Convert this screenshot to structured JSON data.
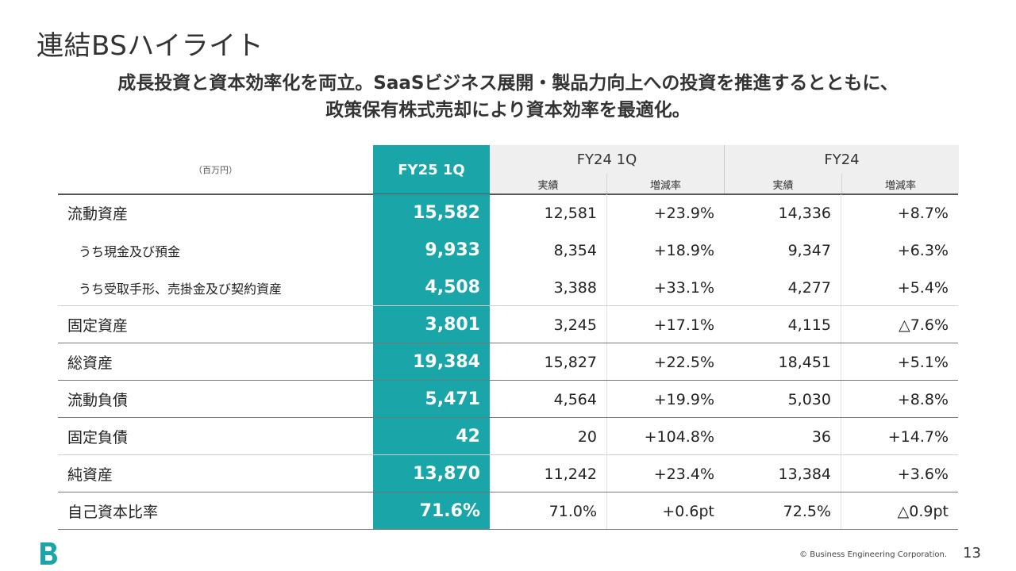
{
  "slide": {
    "title": "連結BSハイライト",
    "subtitle_line1": "成長投資と資本効率化を両立。SaaSビジネス展開・製品力向上への投資を推進するとともに、",
    "subtitle_line2": "政策保有株式売却により資本効率を最適化。"
  },
  "table": {
    "unit_label": "（百万円）",
    "col_fy25": "FY25 1Q",
    "group1_title": "FY24 1Q",
    "group2_title": "FY24",
    "sub_actual": "実績",
    "sub_rate": "増減率",
    "rows": [
      {
        "label": "流動資産",
        "fy25": "15,582",
        "a1": "12,581",
        "r1": "+23.9%",
        "a2": "14,336",
        "r2": "+8.7%"
      },
      {
        "label": "うち現金及び預金",
        "fy25": "9,933",
        "a1": "8,354",
        "r1": "+18.9%",
        "a2": "9,347",
        "r2": "+6.3%"
      },
      {
        "label": "うち受取手形、売掛金及び契約資産",
        "fy25": "4,508",
        "a1": "3,388",
        "r1": "+33.1%",
        "a2": "4,277",
        "r2": "+5.4%"
      },
      {
        "label": "固定資産",
        "fy25": "3,801",
        "a1": "3,245",
        "r1": "+17.1%",
        "a2": "4,115",
        "r2": "△7.6%"
      },
      {
        "label": "総資産",
        "fy25": "19,384",
        "a1": "15,827",
        "r1": "+22.5%",
        "a2": "18,451",
        "r2": "+5.1%"
      },
      {
        "label": "流動負債",
        "fy25": "5,471",
        "a1": "4,564",
        "r1": "+19.9%",
        "a2": "5,030",
        "r2": "+8.8%"
      },
      {
        "label": "固定負債",
        "fy25": "42",
        "a1": "20",
        "r1": "+104.8%",
        "a2": "36",
        "r2": "+14.7%"
      },
      {
        "label": "純資産",
        "fy25": "13,870",
        "a1": "11,242",
        "r1": "+23.4%",
        "a2": "13,384",
        "r2": "+3.6%"
      },
      {
        "label": "自己資本比率",
        "fy25": "71.6%",
        "a1": "71.0%",
        "r1": "+0.6pt",
        "a2": "72.5%",
        "r2": "△0.9pt"
      }
    ]
  },
  "footer": {
    "copyright": "© Business Engineering Corporation.",
    "page_number": "13",
    "logo_icon": "b-logo-icon"
  },
  "colors": {
    "accent": "#1aa6a8",
    "header_bg": "#efefef"
  }
}
